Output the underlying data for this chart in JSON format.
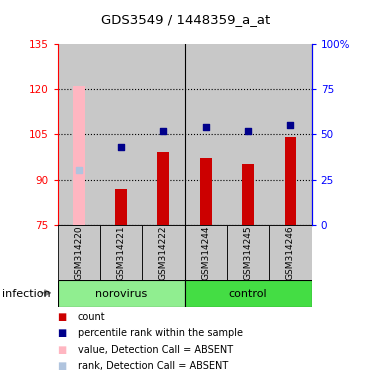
{
  "title": "GDS3549 / 1448359_a_at",
  "samples": [
    "GSM314220",
    "GSM314221",
    "GSM314222",
    "GSM314244",
    "GSM314245",
    "GSM314246"
  ],
  "bar_values": [
    121,
    87,
    99,
    97,
    95,
    104
  ],
  "bar_absent": [
    true,
    false,
    false,
    false,
    false,
    false
  ],
  "percentile_values": [
    30,
    43,
    52,
    54,
    52,
    55
  ],
  "percentile_absent": [
    true,
    false,
    false,
    false,
    false,
    false
  ],
  "ylim_left": [
    75,
    135
  ],
  "ylim_right": [
    0,
    100
  ],
  "yticks_left": [
    75,
    90,
    105,
    120,
    135
  ],
  "yticks_right": [
    0,
    25,
    50,
    75,
    100
  ],
  "ytick_labels_left": [
    "75",
    "90",
    "105",
    "120",
    "135"
  ],
  "ytick_labels_right": [
    "0",
    "25",
    "50",
    "75",
    "100%"
  ],
  "bar_color_normal": "#CC0000",
  "bar_color_absent": "#FFB6C1",
  "dot_color_normal": "#00008B",
  "dot_color_absent": "#B0C4DE",
  "bg_color": "#C8C8C8",
  "norovirus_bg": "#90EE90",
  "control_bg": "#44DD44",
  "legend_items": [
    {
      "label": "count",
      "color": "#CC0000"
    },
    {
      "label": "percentile rank within the sample",
      "color": "#00008B"
    },
    {
      "label": "value, Detection Call = ABSENT",
      "color": "#FFB6C1"
    },
    {
      "label": "rank, Detection Call = ABSENT",
      "color": "#B0C4DE"
    }
  ],
  "figsize": [
    3.71,
    3.84
  ],
  "dpi": 100
}
